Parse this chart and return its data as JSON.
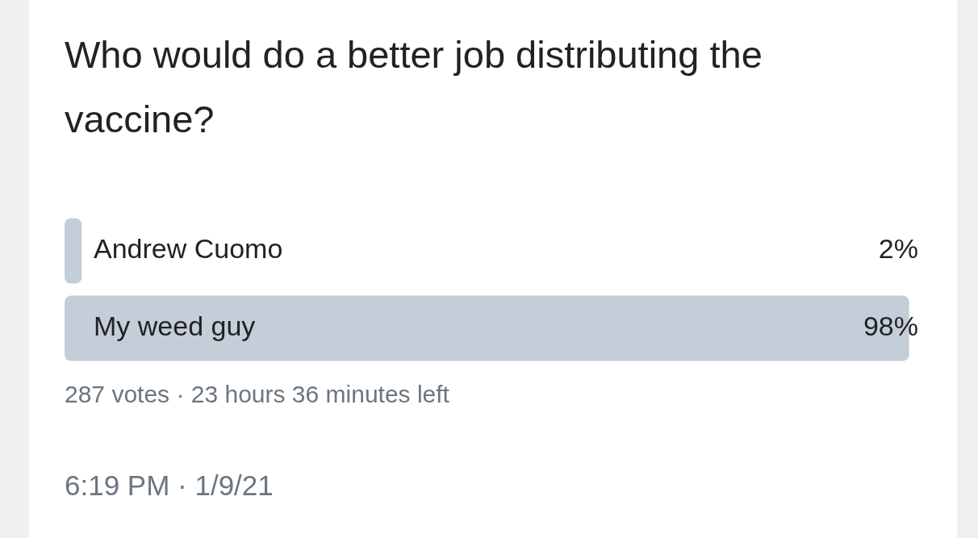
{
  "chart_data": {
    "type": "bar",
    "orientation": "horizontal",
    "title": "Who would do a better job distributing the vaccine?",
    "categories": [
      "Andrew Cuomo",
      "My weed guy"
    ],
    "values": [
      2,
      98
    ],
    "color": "#c4ced8",
    "value_labels": [
      "2%",
      "98%"
    ],
    "tick_labels": false,
    "legend": false,
    "annotations": [
      "287 votes · 23 hours 36 minutes left",
      "6:19 PM · 1/9/21"
    ]
  }
}
